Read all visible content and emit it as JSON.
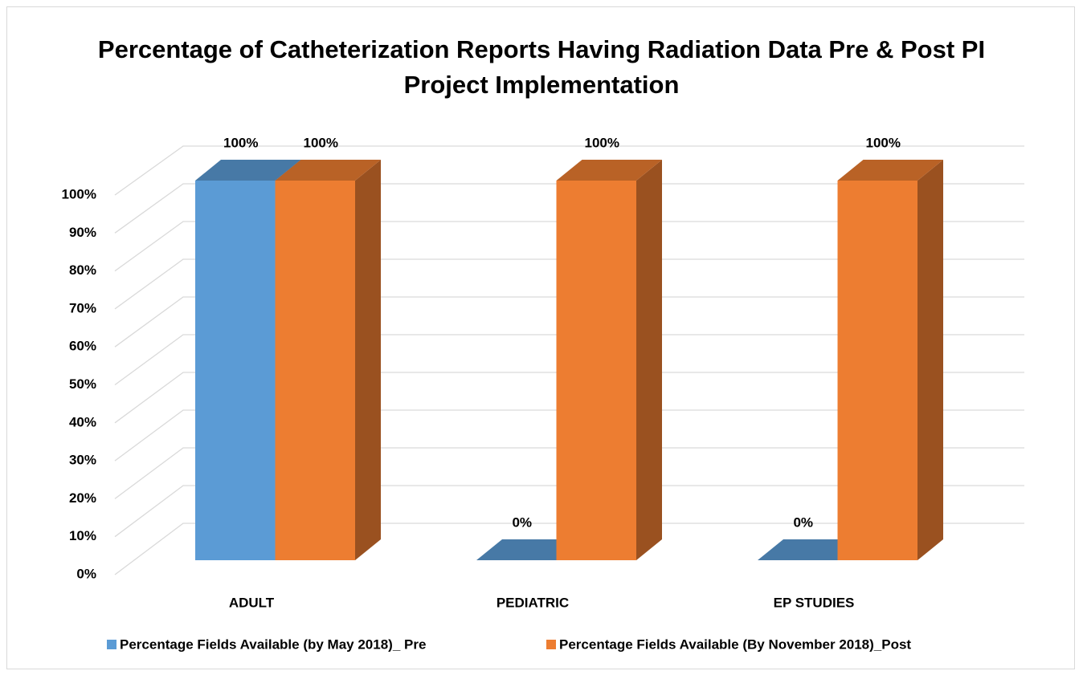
{
  "chart_data": {
    "type": "bar3d",
    "title": "Percentage of Catheterization Reports Having Radiation Data Pre & Post PI Project Implementation",
    "categories": [
      "ADULT",
      "PEDIATRIC",
      "EP STUDIES"
    ],
    "series": [
      {
        "name": "Percentage Fields Available (by May 2018)_ Pre",
        "color": "#5b9bd5",
        "values": [
          100,
          0,
          0
        ],
        "value_labels": [
          "100%",
          "0%",
          "0%"
        ]
      },
      {
        "name": "Percentage Fields Available (By November 2018)_Post",
        "color": "#ed7d31",
        "values": [
          100,
          100,
          100
        ],
        "value_labels": [
          "100%",
          "100%",
          "100%"
        ]
      }
    ],
    "ylim": [
      0,
      100
    ],
    "yticks": [
      {
        "value": 0,
        "label": "0%"
      },
      {
        "value": 10,
        "label": "10%"
      },
      {
        "value": 20,
        "label": "20%"
      },
      {
        "value": 30,
        "label": "30%"
      },
      {
        "value": 40,
        "label": "40%"
      },
      {
        "value": 50,
        "label": "50%"
      },
      {
        "value": 60,
        "label": "60%"
      },
      {
        "value": 70,
        "label": "70%"
      },
      {
        "value": 80,
        "label": "80%"
      },
      {
        "value": 90,
        "label": "90%"
      },
      {
        "value": 100,
        "label": "100%"
      }
    ],
    "grid": true,
    "legend": "bottom"
  }
}
